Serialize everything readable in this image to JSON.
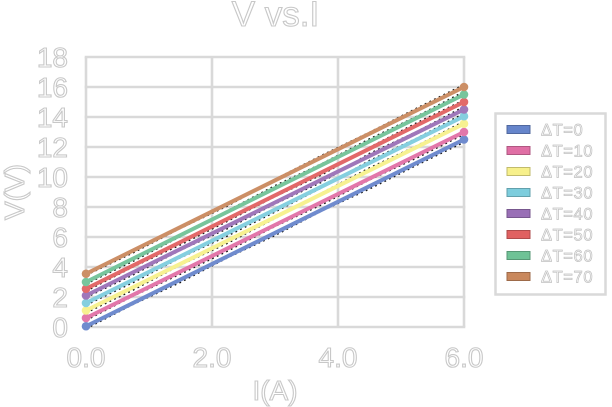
{
  "window": {
    "background": "#ffffff"
  },
  "chart_data": {
    "type": "line",
    "title": "V vs.I",
    "xlabel": "I(A)",
    "ylabel": "V(V)",
    "xlim": [
      0.0,
      6.0
    ],
    "ylim": [
      0,
      18
    ],
    "xticks": [
      {
        "value": 0.0,
        "label": "0.0"
      },
      {
        "value": 2.0,
        "label": "2.0"
      },
      {
        "value": 4.0,
        "label": "4.0"
      },
      {
        "value": 6.0,
        "label": "6.0"
      }
    ],
    "yticks": [
      {
        "value": 0,
        "label": "0"
      },
      {
        "value": 2,
        "label": "2"
      },
      {
        "value": 4,
        "label": "4"
      },
      {
        "value": 6,
        "label": "6"
      },
      {
        "value": 8,
        "label": "8"
      },
      {
        "value": 10,
        "label": "10"
      },
      {
        "value": 12,
        "label": "12"
      },
      {
        "value": 14,
        "label": "14"
      },
      {
        "value": 16,
        "label": "16"
      },
      {
        "value": 18,
        "label": "18"
      }
    ],
    "grid": {
      "horizontal": true,
      "vertical": true,
      "color": "#d9d9d9"
    },
    "legend": {
      "position": "right",
      "border_color": "#d9d9d9",
      "background": "#ffffff"
    },
    "text_style": {
      "fill": "#ffffff",
      "outline": "#c8c8c8"
    },
    "trendline": {
      "style": "dotted",
      "color": "#161616"
    },
    "series": [
      {
        "name": "ΔT=0",
        "color": "#5577C5",
        "x": [
          0.0,
          6.0
        ],
        "values": [
          0.05,
          12.5
        ]
      },
      {
        "name": "ΔT=10",
        "color": "#DD5F9B",
        "x": [
          0.0,
          6.0
        ],
        "values": [
          0.6,
          13.0
        ]
      },
      {
        "name": "ΔT=20",
        "color": "#F6EE7E",
        "x": [
          0.0,
          6.0
        ],
        "values": [
          1.1,
          13.55
        ]
      },
      {
        "name": "ΔT=30",
        "color": "#6FC7D9",
        "x": [
          0.0,
          6.0
        ],
        "values": [
          1.6,
          14.05
        ]
      },
      {
        "name": "ΔT=40",
        "color": "#8E5FAE",
        "x": [
          0.0,
          6.0
        ],
        "values": [
          2.1,
          14.5
        ]
      },
      {
        "name": "ΔT=50",
        "color": "#DD4F4F",
        "x": [
          0.0,
          6.0
        ],
        "values": [
          2.55,
          15.0
        ]
      },
      {
        "name": "ΔT=60",
        "color": "#5FBB8A",
        "x": [
          0.0,
          6.0
        ],
        "values": [
          3.0,
          15.5
        ]
      },
      {
        "name": "ΔT=70",
        "color": "#C37B4B",
        "x": [
          0.0,
          6.0
        ],
        "values": [
          3.55,
          16.0
        ]
      }
    ]
  }
}
